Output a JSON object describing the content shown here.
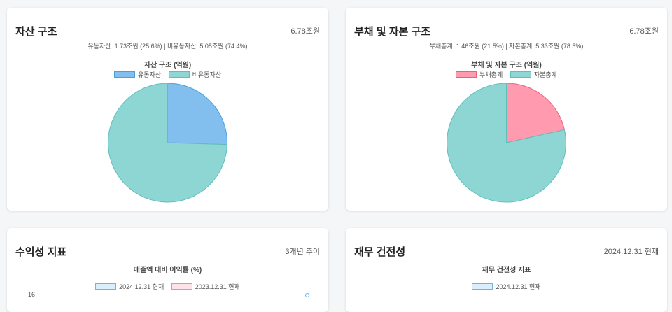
{
  "cards": {
    "asset": {
      "title": "자산 구조",
      "meta": "6.78조원",
      "summary": "유동자산: 1.73조원 (25.6%) | 비유동자산: 5.05조원 (74.4%)"
    },
    "liability": {
      "title": "부채 및 자본 구조",
      "meta": "6.78조원",
      "summary": "부채총계: 1.46조원 (21.5%) | 자본총계: 5.33조원 (78.5%)"
    },
    "profit": {
      "title": "수익성 지표",
      "meta": "3개년 추이"
    },
    "soundness": {
      "title": "재무 건전성",
      "meta": "2024.12.31 현재"
    }
  },
  "chart_data": [
    {
      "type": "pie",
      "title": "자산 구조 (억원)",
      "labels": [
        "유동자산",
        "비유동자산"
      ],
      "values": [
        17300,
        50500
      ],
      "colors": [
        "#82bfee",
        "#8dd6d4"
      ],
      "borders": [
        "#4a9fe0",
        "#5fbfbd"
      ]
    },
    {
      "type": "pie",
      "title": "부채 및 자본 구조 (억원)",
      "labels": [
        "부채총계",
        "자본총계"
      ],
      "values": [
        14600,
        53300
      ],
      "colors": [
        "#ff9aaf",
        "#8dd6d4"
      ],
      "borders": [
        "#f0607e",
        "#5fbfbd"
      ]
    },
    {
      "type": "bar",
      "title": "매출액 대비 이익률 (%)",
      "series": [
        {
          "name": "2024.12.31 현재",
          "color": "#dbeefb",
          "border": "#6fb3e8"
        },
        {
          "name": "2023.12.31 현재",
          "color": "#fde3e8",
          "border": "#f08ca0"
        }
      ],
      "y_ticks": [
        "16"
      ]
    },
    {
      "type": "bar",
      "title": "재무 건전성 지표",
      "series": [
        {
          "name": "2024.12.31 현재",
          "color": "#dbeefb",
          "border": "#6fb3e8"
        }
      ]
    }
  ]
}
